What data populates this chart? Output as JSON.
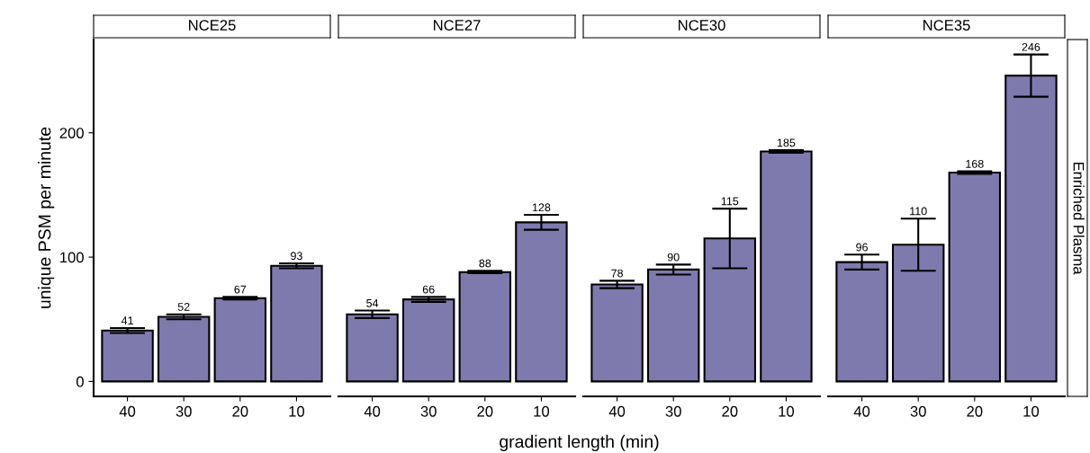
{
  "chart_data": [
    {
      "type": "bar",
      "title": "NCE25",
      "ylabel": "unique PSM per minute",
      "categories": [
        "40",
        "30",
        "20",
        "10"
      ],
      "values": [
        41,
        52,
        67,
        93
      ],
      "errors": [
        2,
        2,
        1,
        2
      ],
      "color": "#7f7aae",
      "ylim": [
        -12,
        275
      ],
      "yticks": [
        0,
        100,
        200
      ],
      "data_labels": true,
      "grid": false
    },
    {
      "type": "bar",
      "title": "NCE27",
      "xlabel": "gradient length (min)",
      "categories": [
        "40",
        "30",
        "20",
        "10"
      ],
      "values": [
        54,
        66,
        88,
        128
      ],
      "errors": [
        3,
        2,
        1,
        6
      ],
      "color": "#7f7aae",
      "ylim": [
        -12,
        275
      ],
      "yticks": [
        0,
        100,
        200
      ],
      "data_labels": true,
      "grid": false,
      "tick_labels": "x"
    },
    {
      "type": "bar",
      "title": "NCE30",
      "categories": [
        "40",
        "30",
        "20",
        "10"
      ],
      "values": [
        78,
        90,
        115,
        185
      ],
      "errors": [
        3,
        4,
        24,
        1
      ],
      "color": "#7f7aae",
      "ylim": [
        -12,
        275
      ],
      "yticks": [
        0,
        100,
        200
      ],
      "data_labels": true,
      "grid": false,
      "tick_labels": "x"
    },
    {
      "type": "bar",
      "title": "NCE35",
      "categories": [
        "40",
        "30",
        "20",
        "10"
      ],
      "values": [
        96,
        110,
        168,
        246
      ],
      "errors": [
        6,
        21,
        1,
        17
      ],
      "color": "#7f7aae",
      "ylim": [
        -12,
        275
      ],
      "yticks": [
        0,
        100,
        200
      ],
      "data_labels": true,
      "grid": false,
      "tick_labels": "x",
      "annotations": [
        "Enriched Plasma"
      ]
    }
  ]
}
